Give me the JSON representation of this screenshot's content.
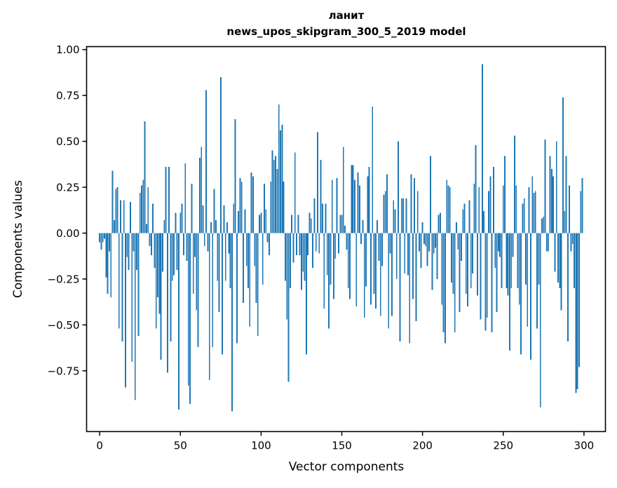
{
  "figure": {
    "title_lines": [
      "ланит",
      "news_upos_skipgram_300_5_2019 model"
    ]
  },
  "chart_data": {
    "type": "bar",
    "title": "ланит — news_upos_skipgram_300_5_2019 model",
    "xlabel": "Vector components",
    "ylabel": "Components values",
    "bar_color": "#1f77b4",
    "axis_color": "#000000",
    "grid": false,
    "legend": false,
    "xlim": [
      -8.1,
      313.3
    ],
    "ylim": [
      -1.081,
      1.016
    ],
    "xticks": [
      0,
      50,
      100,
      150,
      200,
      250,
      300
    ],
    "yticks": [
      1.0,
      0.75,
      0.5,
      0.25,
      0.0,
      -0.25,
      -0.5,
      -0.75
    ],
    "n_components": 300,
    "values": [
      -0.05,
      -0.09,
      -0.05,
      -0.03,
      -0.24,
      -0.33,
      -0.1,
      -0.35,
      0.34,
      0.07,
      0.24,
      0.25,
      -0.52,
      0.18,
      -0.59,
      0.18,
      -0.84,
      -0.13,
      -0.2,
      0.17,
      -0.7,
      -0.1,
      -0.91,
      -0.2,
      -0.56,
      0.22,
      0.26,
      0.29,
      0.61,
      0.05,
      0.25,
      -0.07,
      -0.12,
      0.16,
      -0.19,
      -0.52,
      -0.35,
      -0.44,
      -0.69,
      -0.21,
      0.07,
      0.36,
      -0.76,
      0.36,
      -0.59,
      -0.26,
      -0.23,
      0.11,
      -0.2,
      -0.96,
      0.11,
      0.16,
      -0.12,
      0.38,
      -0.15,
      -0.83,
      -0.93,
      0.27,
      -0.33,
      -0.13,
      -0.42,
      -0.62,
      0.41,
      0.47,
      0.15,
      -0.07,
      0.78,
      -0.1,
      -0.8,
      0.06,
      -0.62,
      0.24,
      0.07,
      -0.26,
      -0.43,
      0.85,
      -0.66,
      0.15,
      -0.26,
      0.06,
      -0.11,
      -0.3,
      -0.97,
      0.16,
      0.62,
      -0.6,
      0.12,
      0.3,
      0.28,
      -0.38,
      0.13,
      -0.18,
      -0.3,
      -0.51,
      0.33,
      0.31,
      -0.18,
      -0.38,
      -0.56,
      0.1,
      0.11,
      -0.28,
      0.27,
      0.13,
      -0.05,
      -0.12,
      0.28,
      0.45,
      0.4,
      0.42,
      0.35,
      0.7,
      0.56,
      0.59,
      0.28,
      -0.26,
      -0.47,
      -0.81,
      -0.3,
      0.1,
      -0.16,
      0.44,
      -0.12,
      0.1,
      -0.12,
      -0.31,
      -0.21,
      -0.26,
      -0.66,
      -0.12,
      0.11,
      0.08,
      -0.19,
      0.19,
      -0.1,
      0.55,
      -0.11,
      0.4,
      0.16,
      -0.41,
      0.16,
      -0.23,
      -0.52,
      -0.28,
      0.29,
      -0.36,
      -0.14,
      0.3,
      -0.11,
      0.1,
      0.1,
      0.47,
      0.04,
      -0.09,
      -0.3,
      -0.36,
      0.37,
      0.37,
      0.29,
      -0.4,
      0.33,
      0.26,
      -0.06,
      0.07,
      -0.46,
      -0.29,
      0.31,
      0.36,
      -0.39,
      0.69,
      -0.33,
      -0.41,
      0.07,
      -0.15,
      -0.45,
      -0.18,
      0.21,
      0.23,
      0.32,
      -0.52,
      -0.11,
      -0.45,
      0.18,
      0.13,
      -0.25,
      0.5,
      -0.59,
      0.19,
      0.19,
      -0.22,
      0.19,
      -0.23,
      -0.6,
      0.32,
      -0.36,
      0.3,
      -0.48,
      0.23,
      -0.1,
      -0.19,
      0.06,
      -0.06,
      -0.07,
      -0.18,
      -0.1,
      0.42,
      -0.31,
      -0.11,
      -0.08,
      -0.25,
      0.1,
      0.11,
      -0.39,
      -0.54,
      -0.6,
      0.29,
      0.26,
      0.25,
      -0.27,
      -0.33,
      -0.54,
      0.06,
      -0.09,
      -0.43,
      -0.15,
      0.13,
      0.16,
      -0.33,
      -0.4,
      0.18,
      -0.3,
      -0.22,
      0.27,
      0.48,
      -0.34,
      0.25,
      -0.47,
      0.92,
      0.12,
      -0.53,
      -0.46,
      0.23,
      0.31,
      -0.54,
      0.36,
      -0.19,
      -0.43,
      -0.1,
      -0.13,
      -0.3,
      0.26,
      0.42,
      -0.3,
      -0.34,
      -0.64,
      -0.3,
      -0.13,
      0.53,
      0.26,
      -0.3,
      -0.39,
      -0.66,
      0.16,
      0.19,
      -0.28,
      -0.51,
      0.25,
      -0.69,
      0.31,
      0.22,
      0.23,
      -0.52,
      -0.28,
      -0.95,
      0.08,
      0.09,
      0.51,
      -0.1,
      -0.1,
      0.42,
      0.35,
      0.31,
      -0.21,
      0.5,
      -0.27,
      -0.3,
      -0.42,
      0.74,
      0.12,
      0.42,
      -0.59,
      0.26,
      -0.1,
      -0.06,
      -0.3,
      -0.87,
      -0.85,
      -0.73,
      0.23,
      0.3
    ]
  }
}
